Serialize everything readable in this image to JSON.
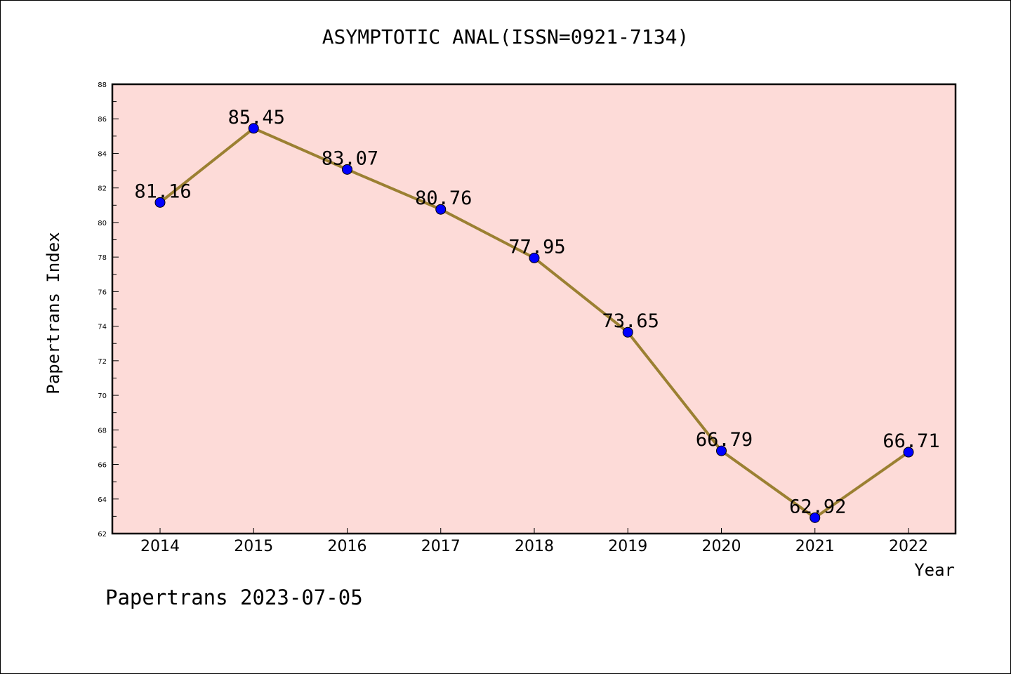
{
  "chart_data": {
    "type": "line",
    "title": "ASYMPTOTIC ANAL(ISSN=0921-7134)",
    "xlabel": "Year",
    "ylabel": "Papertrans Index",
    "categories": [
      "2014",
      "2015",
      "2016",
      "2017",
      "2018",
      "2019",
      "2020",
      "2021",
      "2022"
    ],
    "values": [
      81.16,
      85.45,
      83.07,
      80.76,
      77.95,
      73.65,
      66.79,
      62.92,
      66.71
    ],
    "data_labels": [
      "81.16",
      "85.45",
      "83.07",
      "80.76",
      "77.95",
      "73.65",
      "66.79",
      "62.92",
      "66.71"
    ],
    "ylim": [
      62,
      88
    ],
    "yticks": [
      62,
      64,
      66,
      68,
      70,
      72,
      74,
      76,
      78,
      80,
      82,
      84,
      86,
      88
    ],
    "grid": false,
    "colors": {
      "plot_background": "#fddbd8",
      "line": "#9b8032",
      "marker": "#0000ff"
    }
  },
  "footer": {
    "text": "Papertrans 2023-07-05"
  }
}
